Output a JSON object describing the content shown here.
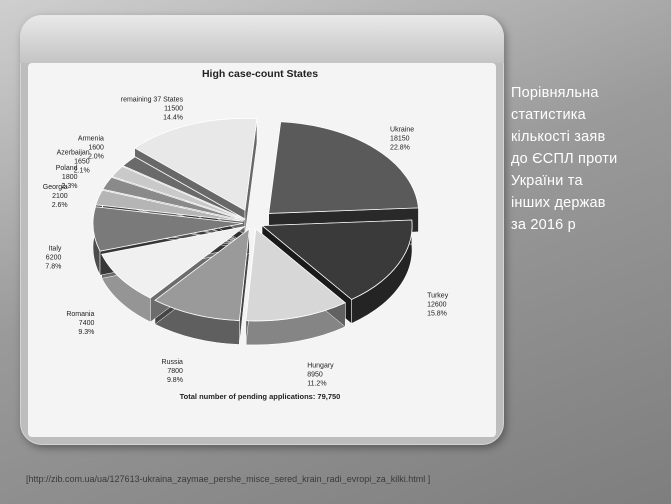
{
  "side_text": {
    "lines": [
      "Порівняльна",
      "статистика",
      "кількості заяв",
      "до ЄСПЛ проти",
      "України та",
      "інших держав",
      "за 2016 р"
    ]
  },
  "caption": "[http://zib.com.ua/ua/127613-ukraina_zaymae_pershe_misce_sered_krain_radi_evropi_za_kilki.html ]",
  "chart_data": {
    "type": "pie",
    "title": "High case-count States",
    "footer": "Total number of pending applications: 79,750",
    "slices": [
      {
        "name": "Ukraine",
        "value": 18150,
        "percent": "22.8%"
      },
      {
        "name": "Turkey",
        "value": 12600,
        "percent": "15.8%"
      },
      {
        "name": "Hungary",
        "value": 8950,
        "percent": "11.2%"
      },
      {
        "name": "Russia",
        "value": 7800,
        "percent": "9.8%"
      },
      {
        "name": "Romania",
        "value": 7400,
        "percent": "9.3%"
      },
      {
        "name": "Italy",
        "value": 6200,
        "percent": "7.8%"
      },
      {
        "name": "Georgia",
        "value": 2100,
        "percent": "2.6%"
      },
      {
        "name": "Poland",
        "value": 1800,
        "percent": "2.3%"
      },
      {
        "name": "Azerbaijan",
        "value": 1650,
        "percent": "2.1%"
      },
      {
        "name": "Armenia",
        "value": 1600,
        "percent": "2.0%"
      },
      {
        "name": "remaining 37 States",
        "value": 11500,
        "percent": "14.4%"
      }
    ],
    "colors": [
      "#5a5a5a",
      "#3a3a3a",
      "#d7d7d7",
      "#9a9a9a",
      "#f0f0f0",
      "#7a7a7a",
      "#b5b5b5",
      "#8a8a8a",
      "#c9c9c9",
      "#6a6a6a",
      "#e8e8e8"
    ]
  }
}
